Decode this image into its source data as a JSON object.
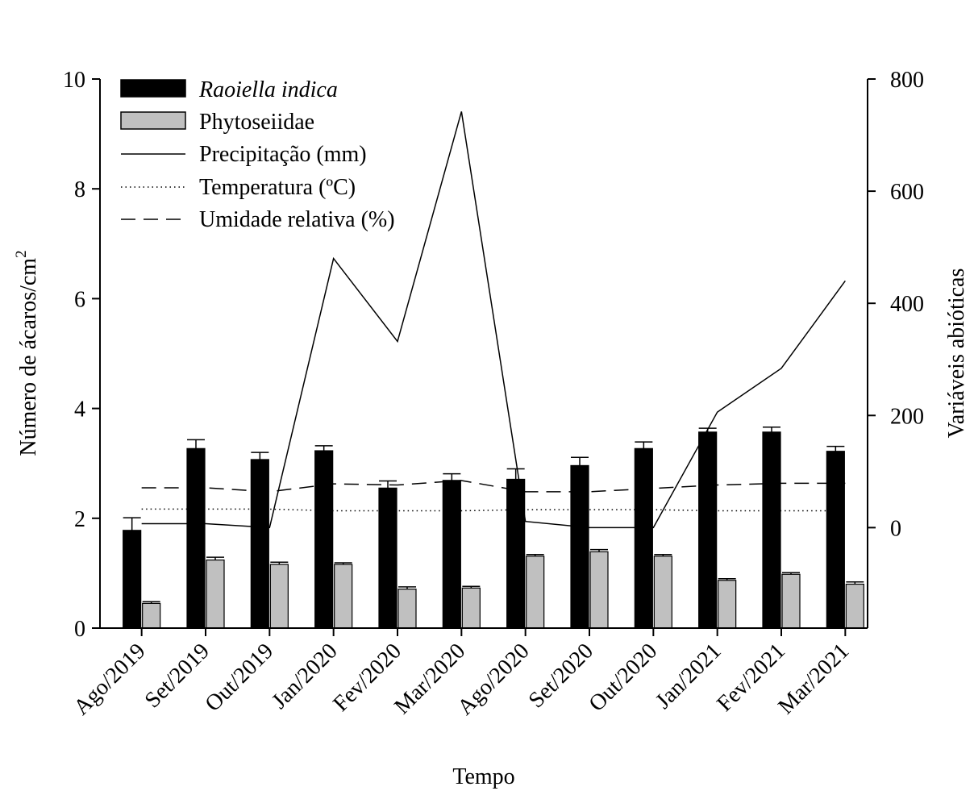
{
  "chart_data": {
    "type": "bar",
    "categories": [
      "Ago/2019",
      "Set/2019",
      "Out/2019",
      "Jan/2020",
      "Fev/2020",
      "Mar/2020",
      "Ago/2020",
      "Set/2020",
      "Out/2020",
      "Jan/2021",
      "Fev/2021",
      "Mar/2021"
    ],
    "xlabel": "Tempo",
    "ylabel_left": "Número de ácaros/cm",
    "ylabel_left_superscript": "2",
    "ylabel_right": "Variáveis abióticas",
    "ylim_left": [
      0,
      10
    ],
    "yticks_left": [
      0,
      2,
      4,
      6,
      8,
      10
    ],
    "ylim_right": [
      0,
      800
    ],
    "yticks_right": [
      0,
      200,
      400,
      600,
      800
    ],
    "right_axis_zero_at_left_value": 1.83,
    "bar_series": [
      {
        "name": "Raoiella indica",
        "italic": true,
        "color": "#000000",
        "values": [
          1.78,
          3.27,
          3.07,
          3.23,
          2.55,
          2.69,
          2.71,
          2.96,
          3.27,
          3.57,
          3.57,
          3.22
        ],
        "errors": [
          0.23,
          0.16,
          0.13,
          0.09,
          0.13,
          0.12,
          0.19,
          0.15,
          0.12,
          0.07,
          0.09,
          0.09
        ]
      },
      {
        "name": "Phytoseiidae",
        "italic": false,
        "color": "#c0c0c0",
        "values": [
          0.45,
          1.24,
          1.16,
          1.16,
          0.71,
          0.73,
          1.31,
          1.39,
          1.31,
          0.87,
          0.98,
          0.8
        ],
        "errors": [
          0.03,
          0.05,
          0.04,
          0.03,
          0.04,
          0.03,
          0.03,
          0.04,
          0.03,
          0.03,
          0.03,
          0.04
        ]
      }
    ],
    "line_series": [
      {
        "name": "Precipitação (mm)",
        "style": "solid",
        "values": [
          7,
          7,
          0,
          480,
          332,
          742,
          11,
          0,
          0,
          206,
          284,
          440
        ]
      },
      {
        "name": "Temperatura (ºC)",
        "style": "dotted",
        "values": [
          33,
          33,
          33,
          30,
          30,
          30,
          32,
          32,
          32,
          30,
          30,
          30
        ]
      },
      {
        "name": "Umidade relativa (%)",
        "style": "dashed",
        "values": [
          71,
          71,
          64,
          78,
          76,
          84,
          64,
          64,
          70,
          76,
          79,
          79
        ]
      }
    ],
    "legend_position": "top-left"
  }
}
